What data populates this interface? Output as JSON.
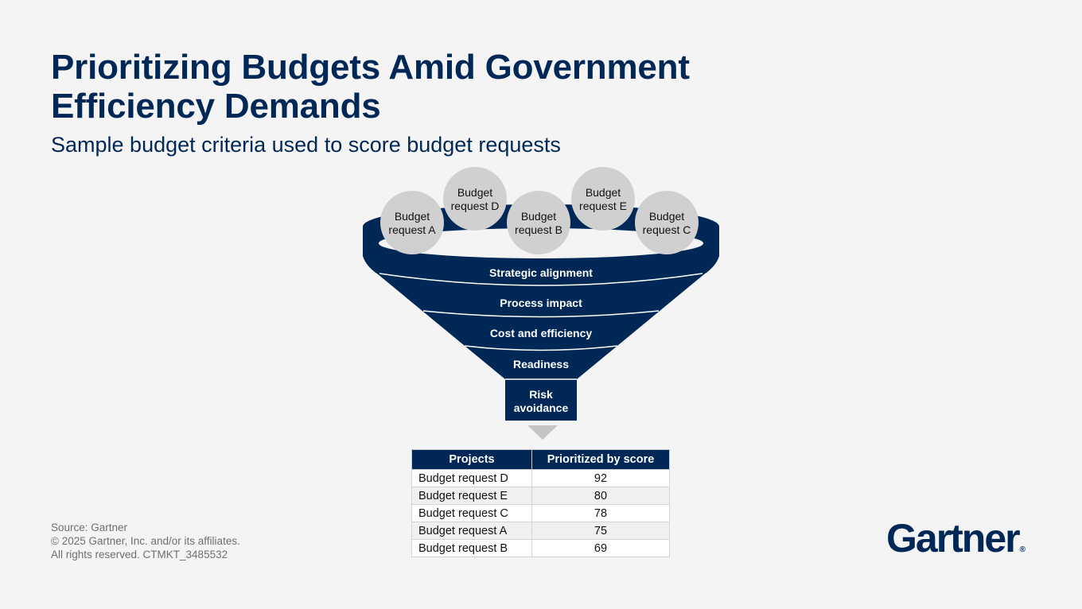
{
  "title": "Prioritizing Budgets Amid Government Efficiency Demands",
  "subtitle": "Sample budget criteria used to score budget requests",
  "funnel": {
    "requests": [
      {
        "line1": "Budget",
        "line2": "request A"
      },
      {
        "line1": "Budget",
        "line2": "request D"
      },
      {
        "line1": "Budget",
        "line2": "request B"
      },
      {
        "line1": "Budget",
        "line2": "request E"
      },
      {
        "line1": "Budget",
        "line2": "request C"
      }
    ],
    "criteria": [
      "Strategic alignment",
      "Process impact",
      "Cost and efficiency",
      "Readiness"
    ],
    "final_criterion": {
      "line1": "Risk",
      "line2": "avoidance"
    }
  },
  "table": {
    "headers": [
      "Projects",
      "Prioritized by score"
    ],
    "rows": [
      {
        "project": "Budget request D",
        "score": "92"
      },
      {
        "project": "Budget request E",
        "score": "80"
      },
      {
        "project": "Budget request C",
        "score": "78"
      },
      {
        "project": "Budget request A",
        "score": "75"
      },
      {
        "project": "Budget request B",
        "score": "69"
      }
    ]
  },
  "footer": {
    "source": "Source: Gartner",
    "copyright": "© 2025 Gartner, Inc. and/or its affiliates.",
    "rights": "All rights reserved. CTMKT_3485532"
  },
  "logo": {
    "text": "Gartner",
    "mark": "®"
  },
  "colors": {
    "navy": "#002856",
    "circle_gray": "#d0d0d0",
    "arrow_gray": "#c4c4c4",
    "background": "#f4f4f4"
  }
}
